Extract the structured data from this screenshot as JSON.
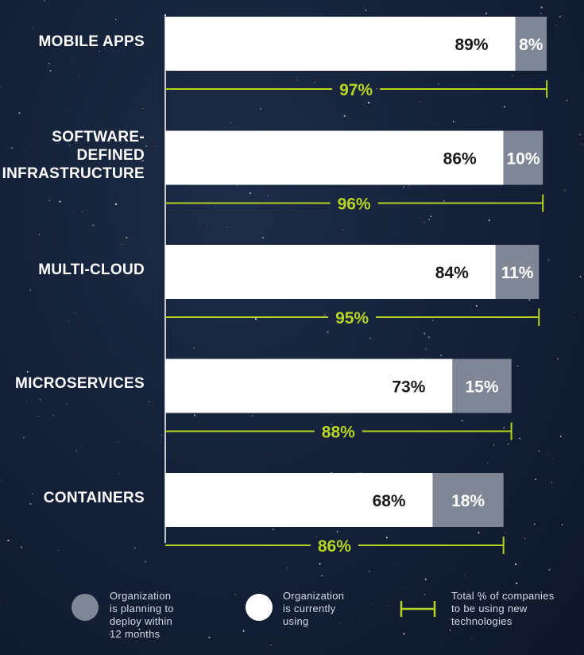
{
  "chart_data": {
    "type": "bar",
    "orientation": "horizontal",
    "stacked": true,
    "categories": [
      "MOBILE APPS",
      "SOFTWARE-\nDEFINED\nINFRASTRUCTURE",
      "MULTI-CLOUD",
      "MICROSERVICES",
      "CONTAINERS"
    ],
    "series": [
      {
        "name": "Organization is currently using",
        "values": [
          89,
          86,
          84,
          73,
          68
        ],
        "color": "#ffffff",
        "label_color": "#1a1a1a"
      },
      {
        "name": "Organization is planning to deploy within 12 months",
        "values": [
          8,
          10,
          11,
          15,
          18
        ],
        "color": "#7f8797",
        "label_color": "#ffffff"
      }
    ],
    "totals": {
      "name": "Total % of companies to be using new technologies",
      "values": [
        97,
        96,
        95,
        88,
        86
      ],
      "color": "#b5d423"
    },
    "value_suffix": "%",
    "xlim": [
      0,
      100
    ],
    "grid": false
  },
  "legend": {
    "planning": {
      "text": "Organization\nis planning to\ndeploy within\n12 months",
      "color": "#7f8797"
    },
    "using": {
      "text": "Organization\nis currently\nusing",
      "color": "#ffffff"
    },
    "total": {
      "text": "Total % of companies\nto be using new\ntechnologies",
      "color": "#b5d423"
    }
  }
}
